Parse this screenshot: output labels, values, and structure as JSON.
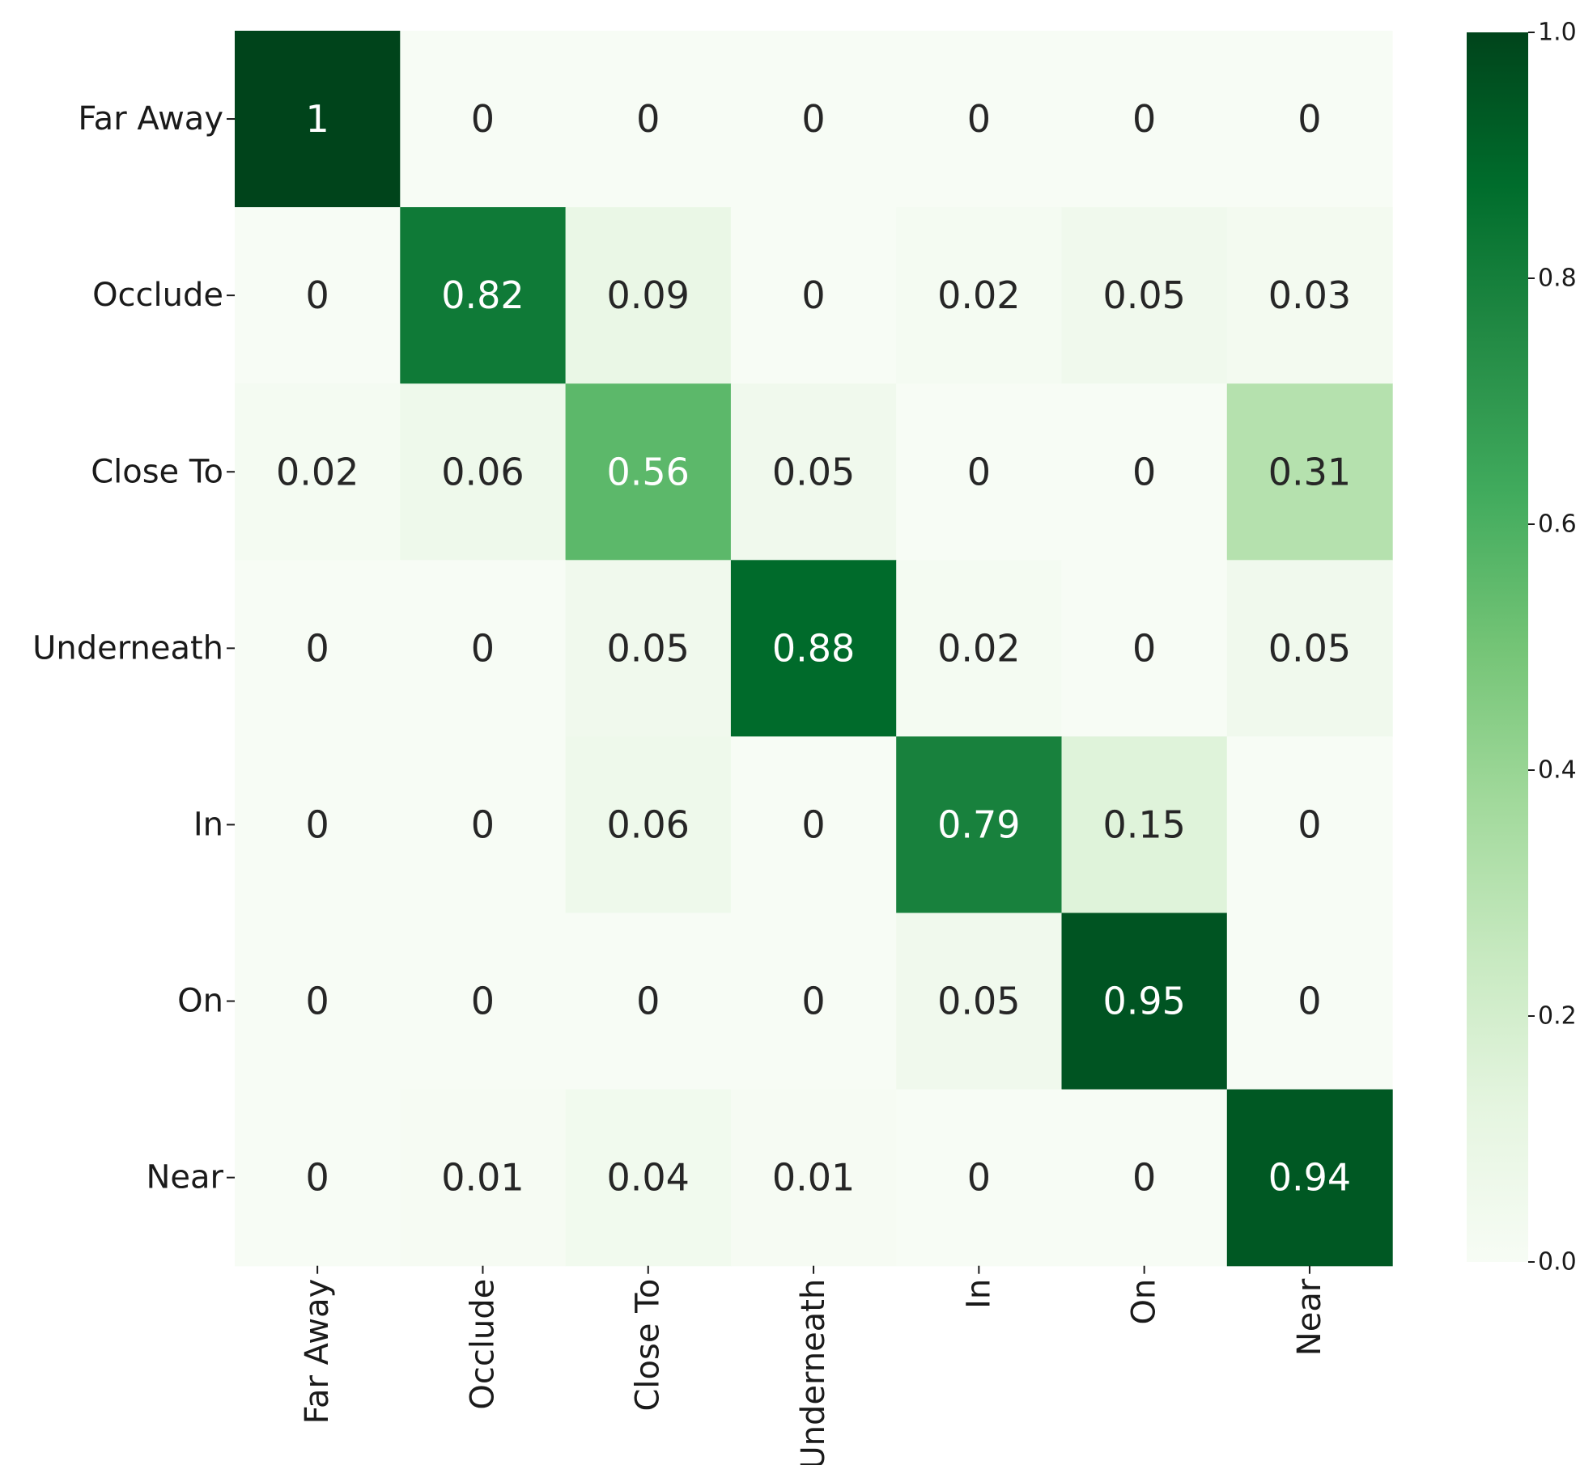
{
  "chart_data": {
    "type": "heatmap",
    "title": "",
    "xlabel": "",
    "ylabel": "",
    "rows": [
      "Far Away",
      "Occlude",
      "Close To",
      "Underneath",
      "In",
      "On",
      "Near"
    ],
    "columns": [
      "Far Away",
      "Occlude",
      "Close To",
      "Underneath",
      "In",
      "On",
      "Near"
    ],
    "values": [
      [
        1,
        0,
        0,
        0,
        0,
        0,
        0
      ],
      [
        0,
        0.82,
        0.09,
        0,
        0.02,
        0.05,
        0.03
      ],
      [
        0.02,
        0.06,
        0.56,
        0.05,
        0,
        0,
        0.31
      ],
      [
        0,
        0,
        0.05,
        0.88,
        0.02,
        0,
        0.05
      ],
      [
        0,
        0,
        0.06,
        0,
        0.79,
        0.15,
        0
      ],
      [
        0,
        0,
        0,
        0,
        0.05,
        0.95,
        0
      ],
      [
        0,
        0.01,
        0.04,
        0.01,
        0,
        0,
        0.94
      ]
    ],
    "colormap": "Greens",
    "colorbar": {
      "range": [
        0,
        1
      ],
      "ticks": [
        "0.0",
        "0.2",
        "0.4",
        "0.6",
        "0.8",
        "1.0"
      ],
      "tick_values": [
        0,
        0.2,
        0.4,
        0.6,
        0.8,
        1.0
      ]
    },
    "grid": false,
    "legend": "colorbar-right"
  }
}
